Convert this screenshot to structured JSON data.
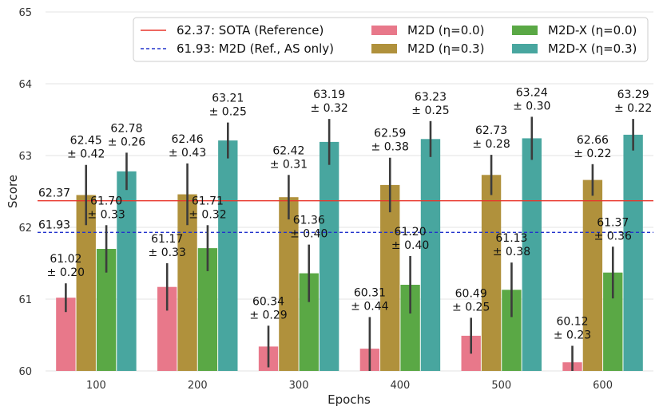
{
  "chart_data": {
    "type": "bar",
    "xlabel": "Epochs",
    "ylabel": "Score",
    "ylim": [
      60,
      65
    ],
    "yticks": [
      "60",
      "61",
      "62",
      "63",
      "64",
      "65"
    ],
    "categories": [
      "100",
      "200",
      "300",
      "400",
      "500",
      "600"
    ],
    "grid": "horizontal",
    "legend_position": "top-right",
    "series": [
      {
        "name": "M2D (η=0.0)",
        "color": "#e8788a",
        "values": [
          61.02,
          61.17,
          60.34,
          60.31,
          60.49,
          60.12
        ],
        "errors": [
          0.2,
          0.33,
          0.29,
          0.44,
          0.25,
          0.23
        ],
        "labels": [
          [
            "61.02",
            "± 0.20"
          ],
          [
            "61.17",
            "± 0.33"
          ],
          [
            "60.34",
            "± 0.29"
          ],
          [
            "60.31",
            "± 0.44"
          ],
          [
            "60.49",
            "± 0.25"
          ],
          [
            "60.12",
            "± 0.23"
          ]
        ]
      },
      {
        "name": "M2D (η=0.3)",
        "color": "#b0913c",
        "values": [
          62.45,
          62.46,
          62.42,
          62.59,
          62.73,
          62.66
        ],
        "errors": [
          0.42,
          0.43,
          0.31,
          0.38,
          0.28,
          0.22
        ],
        "labels": [
          [
            "62.45",
            "± 0.42"
          ],
          [
            "62.46",
            "± 0.43"
          ],
          [
            "62.42",
            "± 0.31"
          ],
          [
            "62.59",
            "± 0.38"
          ],
          [
            "62.73",
            "± 0.28"
          ],
          [
            "62.66",
            "± 0.22"
          ]
        ]
      },
      {
        "name": "M2D-X (η=0.0)",
        "color": "#5aa845",
        "values": [
          61.7,
          61.71,
          61.36,
          61.2,
          61.13,
          61.37
        ],
        "errors": [
          0.33,
          0.32,
          0.4,
          0.4,
          0.38,
          0.36
        ],
        "labels": [
          [
            "61.70",
            "± 0.33"
          ],
          [
            "61.71",
            "± 0.32"
          ],
          [
            "61.36",
            "± 0.40"
          ],
          [
            "61.20",
            "± 0.40"
          ],
          [
            "61.13",
            "± 0.38"
          ],
          [
            "61.37",
            "± 0.36"
          ]
        ]
      },
      {
        "name": "M2D-X (η=0.3)",
        "color": "#48a69f",
        "values": [
          62.78,
          63.21,
          63.19,
          63.23,
          63.24,
          63.29
        ],
        "errors": [
          0.26,
          0.25,
          0.32,
          0.25,
          0.3,
          0.22
        ],
        "labels": [
          [
            "62.78",
            "± 0.26"
          ],
          [
            "63.21",
            "± 0.25"
          ],
          [
            "63.19",
            "± 0.32"
          ],
          [
            "63.23",
            "± 0.25"
          ],
          [
            "63.24",
            "± 0.30"
          ],
          [
            "63.29",
            "± 0.22"
          ]
        ]
      }
    ],
    "reference_lines": [
      {
        "value": 62.37,
        "label": "62.37",
        "legend": "62.37: SOTA (Reference)",
        "color": "#e8372c",
        "style": "solid"
      },
      {
        "value": 61.93,
        "label": "61.93",
        "legend": "61.93: M2D (Ref., AS only)",
        "color": "#2233cc",
        "style": "dashed"
      }
    ]
  }
}
